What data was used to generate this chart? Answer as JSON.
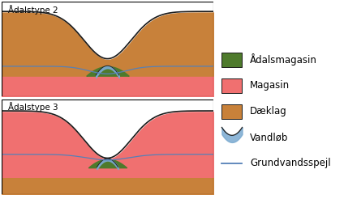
{
  "title1": "Ådalstype 2",
  "title2": "Ådalstype 3",
  "color_aadal": "#4e7a2c",
  "color_magasin": "#f07070",
  "color_daeklag": "#c8813a",
  "color_stream_fill": "#7aaad0",
  "color_stream_line": "#202020",
  "color_gw": "#5580b8",
  "color_black": "#1a1a1a",
  "color_bg": "#ffffff",
  "legend_items": [
    "Ådalsmagasin",
    "Magasin",
    "Dæklag",
    "Vandløb",
    "Grundvandsspejl"
  ],
  "font_size_title": 7.5,
  "font_size_legend": 8.5
}
